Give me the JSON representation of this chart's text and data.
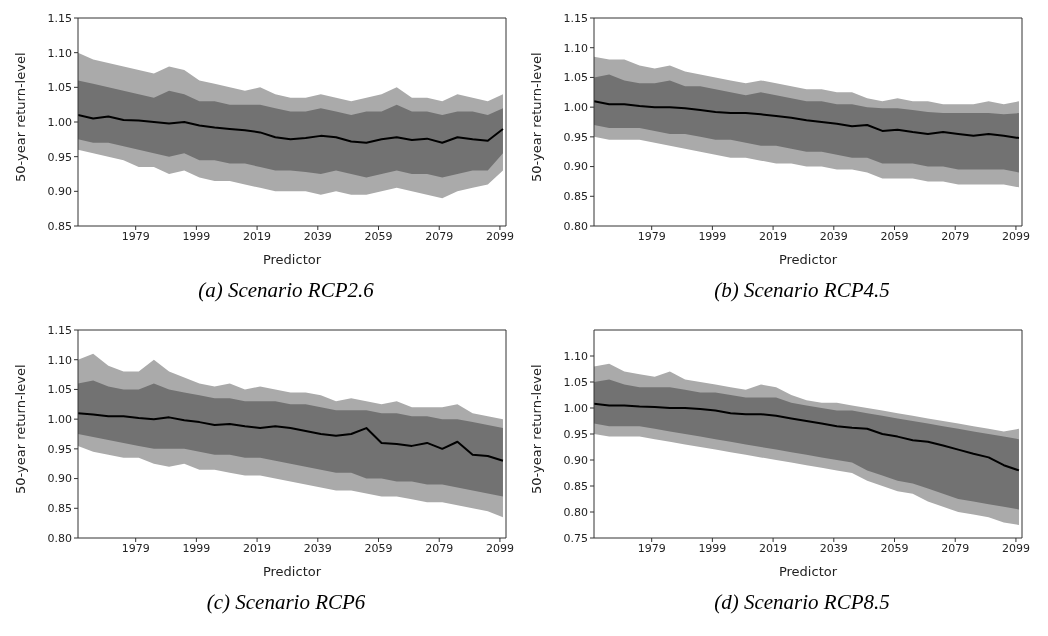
{
  "chart_data": [
    {
      "type": "line",
      "title": "(a) Scenario RCP2.6",
      "xlabel": "Predictor",
      "ylabel": "50-year return-level",
      "x": [
        1960,
        1965,
        1970,
        1975,
        1980,
        1985,
        1990,
        1995,
        2000,
        2005,
        2010,
        2015,
        2020,
        2025,
        2030,
        2035,
        2040,
        2045,
        2050,
        2055,
        2060,
        2065,
        2070,
        2075,
        2080,
        2085,
        2090,
        2095,
        2100
      ],
      "xlim": [
        1960,
        2101
      ],
      "xticks": [
        1979,
        1999,
        2019,
        2039,
        2059,
        2079,
        2099
      ],
      "ylim": [
        0.85,
        1.15
      ],
      "yticks": [
        {
          "value": 0.85,
          "label": "0.85"
        },
        {
          "value": 0.9,
          "label": "0.90"
        },
        {
          "value": 0.95,
          "label": "0.95"
        },
        {
          "value": 1,
          "label": "1.00"
        },
        {
          "value": 1.05,
          "label": "1.05"
        },
        {
          "value": 1.1,
          "label": "1.10"
        },
        {
          "value": 1.15,
          "label": "1.15"
        }
      ],
      "series": [
        {
          "color": "#aaaaaa",
          "values": [
            null,
            null,
            null,
            null,
            null,
            null,
            null,
            null,
            null,
            null,
            null,
            null,
            null,
            null,
            null,
            null,
            null,
            null,
            null,
            null,
            null,
            null,
            null,
            null,
            null,
            null,
            null,
            null,
            null
          ],
          "lower": [
            0.96,
            0.955,
            0.95,
            0.945,
            0.935,
            0.935,
            0.925,
            0.93,
            0.92,
            0.915,
            0.915,
            0.91,
            0.905,
            0.9,
            0.9,
            0.9,
            0.895,
            0.9,
            0.895,
            0.895,
            0.9,
            0.905,
            0.9,
            0.895,
            0.89,
            0.9,
            0.905,
            0.91,
            0.93
          ],
          "upper": [
            1.1,
            1.09,
            1.085,
            1.08,
            1.075,
            1.07,
            1.08,
            1.075,
            1.06,
            1.055,
            1.05,
            1.045,
            1.05,
            1.04,
            1.035,
            1.035,
            1.04,
            1.035,
            1.03,
            1.035,
            1.04,
            1.05,
            1.035,
            1.035,
            1.03,
            1.04,
            1.035,
            1.03,
            1.04
          ]
        },
        {
          "color": "#000000",
          "values": [
            1.01,
            1.005,
            1.008,
            1.003,
            1.002,
            1.0,
            0.998,
            1.0,
            0.995,
            0.992,
            0.99,
            0.988,
            0.985,
            0.978,
            0.975,
            0.977,
            0.98,
            0.978,
            0.972,
            0.97,
            0.975,
            0.978,
            0.974,
            0.976,
            0.97,
            0.978,
            0.975,
            0.973,
            0.99
          ],
          "lower": [
            0.975,
            0.97,
            0.97,
            0.965,
            0.96,
            0.955,
            0.95,
            0.955,
            0.945,
            0.945,
            0.94,
            0.94,
            0.935,
            0.93,
            0.93,
            0.928,
            0.925,
            0.93,
            0.925,
            0.92,
            0.925,
            0.93,
            0.925,
            0.925,
            0.92,
            0.925,
            0.93,
            0.93,
            0.955
          ],
          "upper": [
            1.06,
            1.055,
            1.05,
            1.045,
            1.04,
            1.035,
            1.045,
            1.04,
            1.03,
            1.03,
            1.025,
            1.025,
            1.025,
            1.02,
            1.015,
            1.015,
            1.02,
            1.015,
            1.01,
            1.015,
            1.015,
            1.025,
            1.015,
            1.015,
            1.01,
            1.015,
            1.015,
            1.01,
            1.02
          ]
        }
      ]
    },
    {
      "type": "line",
      "title": "(b) Scenario RCP4.5",
      "xlabel": "Predictor",
      "ylabel": "50-year return-level",
      "x": [
        1960,
        1965,
        1970,
        1975,
        1980,
        1985,
        1990,
        1995,
        2000,
        2005,
        2010,
        2015,
        2020,
        2025,
        2030,
        2035,
        2040,
        2045,
        2050,
        2055,
        2060,
        2065,
        2070,
        2075,
        2080,
        2085,
        2090,
        2095,
        2100
      ],
      "xlim": [
        1960,
        2101
      ],
      "xticks": [
        1979,
        1999,
        2019,
        2039,
        2059,
        2079,
        2099
      ],
      "ylim": [
        0.8,
        1.15
      ],
      "yticks": [
        {
          "value": 0.8,
          "label": "0.80"
        },
        {
          "value": 0.85,
          "label": "0.85"
        },
        {
          "value": 0.9,
          "label": "0.90"
        },
        {
          "value": 0.95,
          "label": "0.95"
        },
        {
          "value": 1,
          "label": "1.00"
        },
        {
          "value": 1.05,
          "label": "1.05"
        },
        {
          "value": 1.1,
          "label": "1.10"
        },
        {
          "value": 1.15,
          "label": "1.15"
        }
      ],
      "series": [
        {
          "color": "#aaaaaa",
          "values": [
            null,
            null,
            null,
            null,
            null,
            null,
            null,
            null,
            null,
            null,
            null,
            null,
            null,
            null,
            null,
            null,
            null,
            null,
            null,
            null,
            null,
            null,
            null,
            null,
            null,
            null,
            null,
            null,
            null
          ],
          "lower": [
            0.95,
            0.945,
            0.945,
            0.945,
            0.94,
            0.935,
            0.93,
            0.925,
            0.92,
            0.915,
            0.915,
            0.91,
            0.905,
            0.905,
            0.9,
            0.9,
            0.895,
            0.895,
            0.89,
            0.88,
            0.88,
            0.88,
            0.875,
            0.875,
            0.87,
            0.87,
            0.87,
            0.87,
            0.865
          ],
          "upper": [
            1.085,
            1.08,
            1.08,
            1.07,
            1.065,
            1.07,
            1.06,
            1.055,
            1.05,
            1.045,
            1.04,
            1.045,
            1.04,
            1.035,
            1.03,
            1.03,
            1.025,
            1.025,
            1.015,
            1.01,
            1.015,
            1.01,
            1.01,
            1.005,
            1.005,
            1.005,
            1.01,
            1.005,
            1.01
          ]
        },
        {
          "color": "#000000",
          "values": [
            1.01,
            1.005,
            1.005,
            1.002,
            1.0,
            1.0,
            0.998,
            0.995,
            0.992,
            0.99,
            0.99,
            0.988,
            0.985,
            0.982,
            0.978,
            0.975,
            0.972,
            0.968,
            0.97,
            0.96,
            0.962,
            0.958,
            0.955,
            0.958,
            0.955,
            0.952,
            0.955,
            0.952,
            0.948
          ],
          "lower": [
            0.97,
            0.965,
            0.965,
            0.965,
            0.96,
            0.955,
            0.955,
            0.95,
            0.945,
            0.945,
            0.94,
            0.935,
            0.935,
            0.93,
            0.925,
            0.925,
            0.92,
            0.915,
            0.915,
            0.905,
            0.905,
            0.905,
            0.9,
            0.9,
            0.895,
            0.895,
            0.895,
            0.895,
            0.89
          ],
          "upper": [
            1.05,
            1.055,
            1.045,
            1.04,
            1.04,
            1.045,
            1.035,
            1.035,
            1.03,
            1.025,
            1.02,
            1.025,
            1.02,
            1.015,
            1.01,
            1.01,
            1.005,
            1.005,
            1.0,
            0.998,
            0.998,
            0.995,
            0.992,
            0.99,
            0.99,
            0.99,
            0.99,
            0.988,
            0.99
          ]
        }
      ]
    },
    {
      "type": "line",
      "title": "(c) Scenario RCP6",
      "xlabel": "Predictor",
      "ylabel": "50-year return-level",
      "x": [
        1960,
        1965,
        1970,
        1975,
        1980,
        1985,
        1990,
        1995,
        2000,
        2005,
        2010,
        2015,
        2020,
        2025,
        2030,
        2035,
        2040,
        2045,
        2050,
        2055,
        2060,
        2065,
        2070,
        2075,
        2080,
        2085,
        2090,
        2095,
        2100
      ],
      "xlim": [
        1960,
        2101
      ],
      "xticks": [
        1979,
        1999,
        2019,
        2039,
        2059,
        2079,
        2099
      ],
      "ylim": [
        0.8,
        1.15
      ],
      "yticks": [
        {
          "value": 0.8,
          "label": "0.80"
        },
        {
          "value": 0.85,
          "label": "0.85"
        },
        {
          "value": 0.9,
          "label": "0.90"
        },
        {
          "value": 0.95,
          "label": "0.95"
        },
        {
          "value": 1,
          "label": "1.00"
        },
        {
          "value": 1.05,
          "label": "1.05"
        },
        {
          "value": 1.1,
          "label": "1.10"
        },
        {
          "value": 1.15,
          "label": "1.15"
        }
      ],
      "series": [
        {
          "color": "#aaaaaa",
          "values": [
            null,
            null,
            null,
            null,
            null,
            null,
            null,
            null,
            null,
            null,
            null,
            null,
            null,
            null,
            null,
            null,
            null,
            null,
            null,
            null,
            null,
            null,
            null,
            null,
            null,
            null,
            null,
            null,
            null
          ],
          "lower": [
            0.955,
            0.945,
            0.94,
            0.935,
            0.935,
            0.925,
            0.92,
            0.925,
            0.915,
            0.915,
            0.91,
            0.905,
            0.905,
            0.9,
            0.895,
            0.89,
            0.885,
            0.88,
            0.88,
            0.875,
            0.87,
            0.87,
            0.865,
            0.86,
            0.86,
            0.855,
            0.85,
            0.845,
            0.835
          ],
          "upper": [
            1.1,
            1.11,
            1.09,
            1.08,
            1.08,
            1.1,
            1.08,
            1.07,
            1.06,
            1.055,
            1.06,
            1.05,
            1.055,
            1.05,
            1.045,
            1.045,
            1.04,
            1.03,
            1.035,
            1.03,
            1.025,
            1.03,
            1.02,
            1.02,
            1.02,
            1.025,
            1.01,
            1.005,
            1.0
          ]
        },
        {
          "color": "#000000",
          "values": [
            1.01,
            1.008,
            1.005,
            1.005,
            1.002,
            1.0,
            1.003,
            0.998,
            0.995,
            0.99,
            0.992,
            0.988,
            0.985,
            0.988,
            0.985,
            0.98,
            0.975,
            0.972,
            0.975,
            0.985,
            0.96,
            0.958,
            0.955,
            0.96,
            0.95,
            0.962,
            0.94,
            0.938,
            0.93
          ],
          "lower": [
            0.975,
            0.97,
            0.965,
            0.96,
            0.955,
            0.95,
            0.95,
            0.95,
            0.945,
            0.94,
            0.94,
            0.935,
            0.935,
            0.93,
            0.925,
            0.92,
            0.915,
            0.91,
            0.91,
            0.9,
            0.9,
            0.895,
            0.895,
            0.89,
            0.89,
            0.885,
            0.88,
            0.875,
            0.87
          ],
          "upper": [
            1.06,
            1.065,
            1.055,
            1.05,
            1.05,
            1.06,
            1.05,
            1.045,
            1.04,
            1.035,
            1.035,
            1.03,
            1.03,
            1.03,
            1.025,
            1.025,
            1.02,
            1.015,
            1.015,
            1.015,
            1.01,
            1.01,
            1.005,
            1.005,
            1.0,
            1.0,
            0.995,
            0.99,
            0.985
          ]
        }
      ]
    },
    {
      "type": "line",
      "title": "(d) Scenario RCP8.5",
      "xlabel": "Predictor",
      "ylabel": "50-year return-level",
      "x": [
        1960,
        1965,
        1970,
        1975,
        1980,
        1985,
        1990,
        1995,
        2000,
        2005,
        2010,
        2015,
        2020,
        2025,
        2030,
        2035,
        2040,
        2045,
        2050,
        2055,
        2060,
        2065,
        2070,
        2075,
        2080,
        2085,
        2090,
        2095,
        2100
      ],
      "xlim": [
        1960,
        2101
      ],
      "xticks": [
        1979,
        1999,
        2019,
        2039,
        2059,
        2079,
        2099
      ],
      "ylim": [
        0.75,
        1.15
      ],
      "yticks": [
        {
          "value": 0.75,
          "label": "0.75"
        },
        {
          "value": 0.8,
          "label": "0.80"
        },
        {
          "value": 0.85,
          "label": "0.85"
        },
        {
          "value": 0.9,
          "label": "0.90"
        },
        {
          "value": 0.95,
          "label": "0.95"
        },
        {
          "value": 1,
          "label": "1.00"
        },
        {
          "value": 1.05,
          "label": "1.05"
        },
        {
          "value": 1.1,
          "label": "1.10"
        }
      ],
      "series": [
        {
          "color": "#aaaaaa",
          "values": [
            null,
            null,
            null,
            null,
            null,
            null,
            null,
            null,
            null,
            null,
            null,
            null,
            null,
            null,
            null,
            null,
            null,
            null,
            null,
            null,
            null,
            null,
            null,
            null,
            null,
            null,
            null,
            null,
            null
          ],
          "lower": [
            0.95,
            0.945,
            0.945,
            0.945,
            0.94,
            0.935,
            0.93,
            0.925,
            0.92,
            0.915,
            0.91,
            0.905,
            0.9,
            0.895,
            0.89,
            0.885,
            0.88,
            0.875,
            0.86,
            0.85,
            0.84,
            0.835,
            0.82,
            0.81,
            0.8,
            0.795,
            0.79,
            0.78,
            0.775
          ],
          "upper": [
            1.08,
            1.085,
            1.07,
            1.065,
            1.06,
            1.07,
            1.055,
            1.05,
            1.045,
            1.04,
            1.035,
            1.045,
            1.04,
            1.025,
            1.015,
            1.01,
            1.01,
            1.005,
            1.0,
            0.995,
            0.99,
            0.985,
            0.98,
            0.975,
            0.97,
            0.965,
            0.96,
            0.955,
            0.96
          ]
        },
        {
          "color": "#000000",
          "values": [
            1.008,
            1.005,
            1.005,
            1.003,
            1.002,
            1.0,
            1.0,
            0.998,
            0.995,
            0.99,
            0.988,
            0.988,
            0.985,
            0.98,
            0.975,
            0.97,
            0.965,
            0.962,
            0.96,
            0.95,
            0.945,
            0.938,
            0.935,
            0.928,
            0.92,
            0.912,
            0.905,
            0.89,
            0.88
          ],
          "lower": [
            0.97,
            0.965,
            0.965,
            0.965,
            0.96,
            0.955,
            0.95,
            0.945,
            0.94,
            0.935,
            0.93,
            0.925,
            0.92,
            0.915,
            0.91,
            0.905,
            0.9,
            0.895,
            0.88,
            0.87,
            0.86,
            0.855,
            0.845,
            0.835,
            0.825,
            0.82,
            0.815,
            0.81,
            0.805
          ],
          "upper": [
            1.05,
            1.055,
            1.045,
            1.04,
            1.04,
            1.04,
            1.035,
            1.03,
            1.03,
            1.025,
            1.02,
            1.02,
            1.02,
            1.01,
            1.005,
            1.0,
            0.995,
            0.995,
            0.99,
            0.985,
            0.98,
            0.975,
            0.97,
            0.965,
            0.96,
            0.955,
            0.95,
            0.945,
            0.94
          ]
        }
      ]
    }
  ]
}
